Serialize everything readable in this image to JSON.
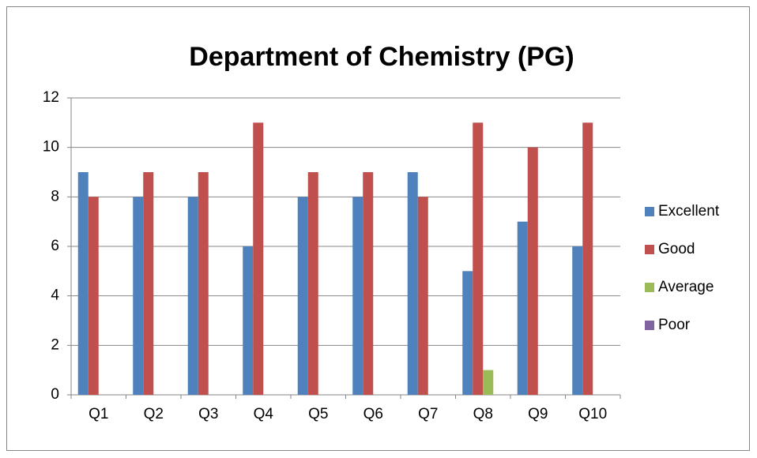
{
  "chart_data": {
    "type": "bar",
    "title": "Department of Chemistry (PG)",
    "categories": [
      "Q1",
      "Q2",
      "Q3",
      "Q4",
      "Q5",
      "Q6",
      "Q7",
      "Q8",
      "Q9",
      "Q10"
    ],
    "series": [
      {
        "name": "Excellent",
        "color": "#4f81bd",
        "values": [
          9,
          8,
          8,
          6,
          8,
          8,
          9,
          5,
          7,
          6
        ]
      },
      {
        "name": "Good",
        "color": "#c0504d",
        "values": [
          8,
          9,
          9,
          11,
          9,
          9,
          8,
          11,
          10,
          11
        ]
      },
      {
        "name": "Average",
        "color": "#9bbb59",
        "values": [
          0,
          0,
          0,
          0,
          0,
          0,
          0,
          1,
          0,
          0
        ]
      },
      {
        "name": "Poor",
        "color": "#8064a2",
        "values": [
          0,
          0,
          0,
          0,
          0,
          0,
          0,
          0,
          0,
          0
        ]
      }
    ],
    "ylim": [
      0,
      12
    ],
    "yticks": [
      0,
      2,
      4,
      6,
      8,
      10,
      12
    ],
    "grid": true,
    "legend": "right"
  }
}
